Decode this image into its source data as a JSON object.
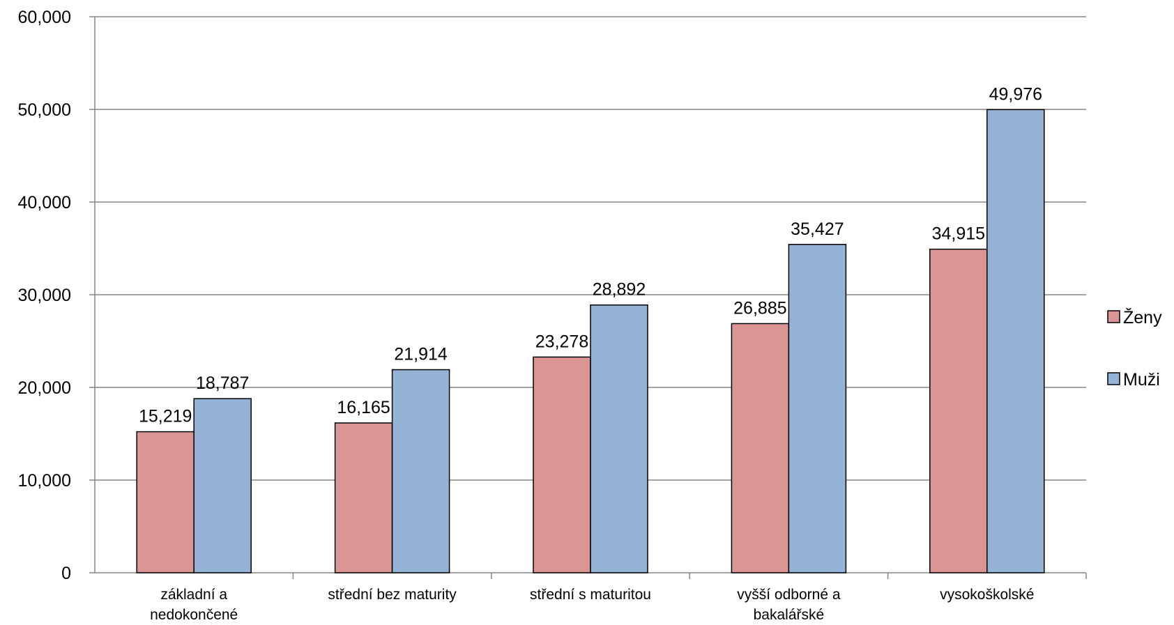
{
  "chart_data": {
    "type": "bar",
    "categories": [
      [
        "základní a",
        "nedokončené"
      ],
      [
        "střední bez maturity"
      ],
      [
        "střední s maturitou"
      ],
      [
        "vyšší odborné a",
        "bakalářské"
      ],
      [
        "vysokoškolské"
      ]
    ],
    "series": [
      {
        "name": "Ženy",
        "color": "#D99694",
        "values": [
          15219,
          16165,
          23278,
          26885,
          34915
        ],
        "labels": [
          "15,219",
          "16,165",
          "23,278",
          "26,885",
          "34,915"
        ]
      },
      {
        "name": "Muži",
        "color": "#95B3D7",
        "values": [
          18787,
          21914,
          28892,
          35427,
          49976
        ],
        "labels": [
          "18,787",
          "21,914",
          "28,892",
          "35,427",
          "49,976"
        ]
      }
    ],
    "ylim": [
      0,
      60000
    ],
    "yticks": [
      0,
      10000,
      20000,
      30000,
      40000,
      50000,
      60000
    ],
    "ytick_labels": [
      "0",
      "10,000",
      "20,000",
      "30,000",
      "40,000",
      "50,000",
      "60,000"
    ],
    "grid": true,
    "legend_position": "right"
  }
}
